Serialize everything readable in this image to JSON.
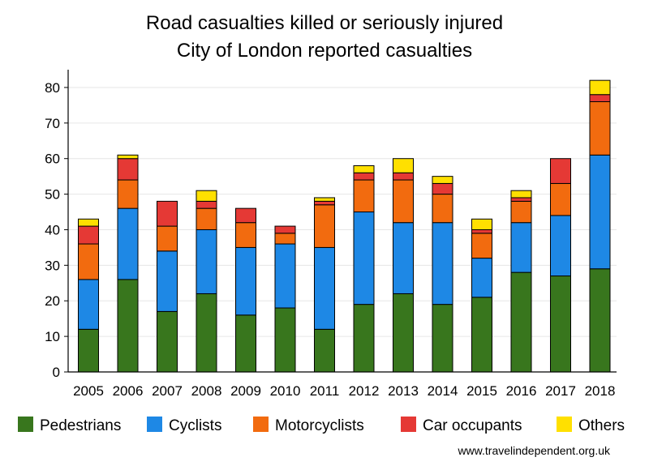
{
  "chart_data": {
    "type": "bar",
    "stacked": true,
    "title": "Road casualties killed or seriously injured",
    "subtitle": "City of London reported casualties",
    "xlabel": "",
    "ylabel": "",
    "ylim": [
      0,
      85
    ],
    "yticks": [
      0,
      10,
      20,
      30,
      40,
      50,
      60,
      70,
      80
    ],
    "grid": true,
    "legend_position": "bottom",
    "categories": [
      "2005",
      "2006",
      "2007",
      "2008",
      "2009",
      "2010",
      "2011",
      "2012",
      "2013",
      "2014",
      "2015",
      "2016",
      "2017",
      "2018"
    ],
    "series": [
      {
        "name": "Pedestrians",
        "color": "#38761d",
        "values": [
          12,
          26,
          17,
          22,
          16,
          18,
          12,
          19,
          22,
          19,
          21,
          28,
          27,
          29
        ]
      },
      {
        "name": "Cyclists",
        "color": "#1e88e5",
        "values": [
          14,
          20,
          17,
          18,
          19,
          18,
          23,
          26,
          20,
          23,
          11,
          14,
          17,
          32
        ]
      },
      {
        "name": "Motorcyclists",
        "color": "#f26b0f",
        "values": [
          10,
          8,
          7,
          6,
          7,
          3,
          12,
          9,
          12,
          8,
          7,
          6,
          9,
          15
        ]
      },
      {
        "name": "Car occupants",
        "color": "#e53935",
        "values": [
          5,
          6,
          7,
          2,
          4,
          2,
          1,
          2,
          2,
          3,
          1,
          1,
          7,
          2
        ]
      },
      {
        "name": "Others",
        "color": "#ffe000",
        "values": [
          2,
          1,
          0,
          3,
          0,
          0,
          1,
          2,
          4,
          2,
          3,
          2,
          0,
          4
        ]
      }
    ],
    "source": "www.travelindependent.org.uk"
  }
}
